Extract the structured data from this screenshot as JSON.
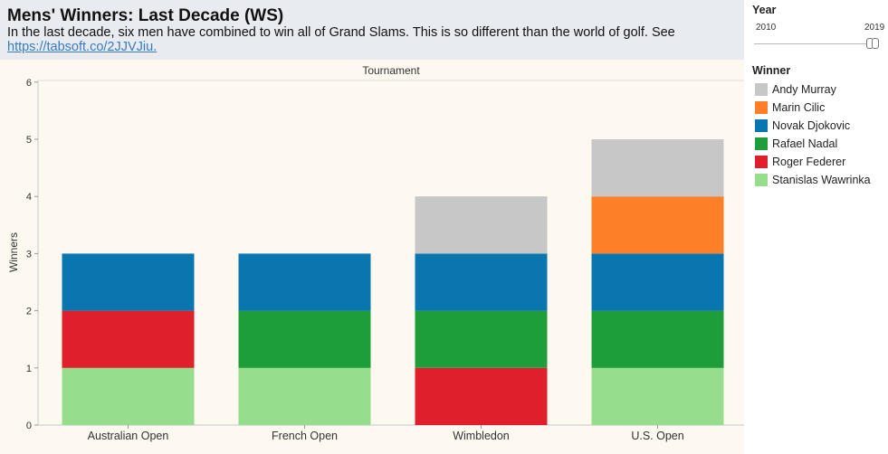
{
  "header": {
    "title": "Mens' Winners: Last Decade (WS)",
    "subtitle": "In the last decade, six men have combined to win all of Grand Slams. This is so different than the world of golf. See",
    "link": "https://tabsoft.co/2JJVJiu."
  },
  "filter": {
    "title": "Year",
    "min": "2010",
    "max": "2019"
  },
  "legend": {
    "title": "Winner",
    "items": [
      {
        "label": "Andy Murray",
        "color": "#c7c7c7"
      },
      {
        "label": "Marin Cilic",
        "color": "#fd7f28"
      },
      {
        "label": "Novak Djokovic",
        "color": "#0a76b0"
      },
      {
        "label": "Rafael Nadal",
        "color": "#1e9e3b"
      },
      {
        "label": "Roger Federer",
        "color": "#e01f2c"
      },
      {
        "label": "Stanislas Wawrinka",
        "color": "#96de8e"
      }
    ]
  },
  "chart_data": {
    "type": "bar",
    "stacked": true,
    "title": "Tournament",
    "xlabel": "",
    "ylabel": "Winners",
    "ylim": [
      0,
      6
    ],
    "yticks": [
      0,
      1,
      2,
      3,
      4,
      5,
      6
    ],
    "categories": [
      "Australian Open",
      "French Open",
      "Wimbledon",
      "U.S. Open"
    ],
    "series": [
      {
        "name": "Stanislas Wawrinka",
        "color": "#96de8e",
        "values": [
          1,
          1,
          0,
          1
        ]
      },
      {
        "name": "Roger Federer",
        "color": "#e01f2c",
        "values": [
          1,
          0,
          1,
          0
        ]
      },
      {
        "name": "Rafael Nadal",
        "color": "#1e9e3b",
        "values": [
          0,
          1,
          1,
          1
        ]
      },
      {
        "name": "Novak Djokovic",
        "color": "#0a76b0",
        "values": [
          1,
          1,
          1,
          1
        ]
      },
      {
        "name": "Marin Cilic",
        "color": "#fd7f28",
        "values": [
          0,
          0,
          0,
          1
        ]
      },
      {
        "name": "Andy Murray",
        "color": "#c7c7c7",
        "values": [
          0,
          0,
          1,
          1
        ]
      }
    ]
  }
}
